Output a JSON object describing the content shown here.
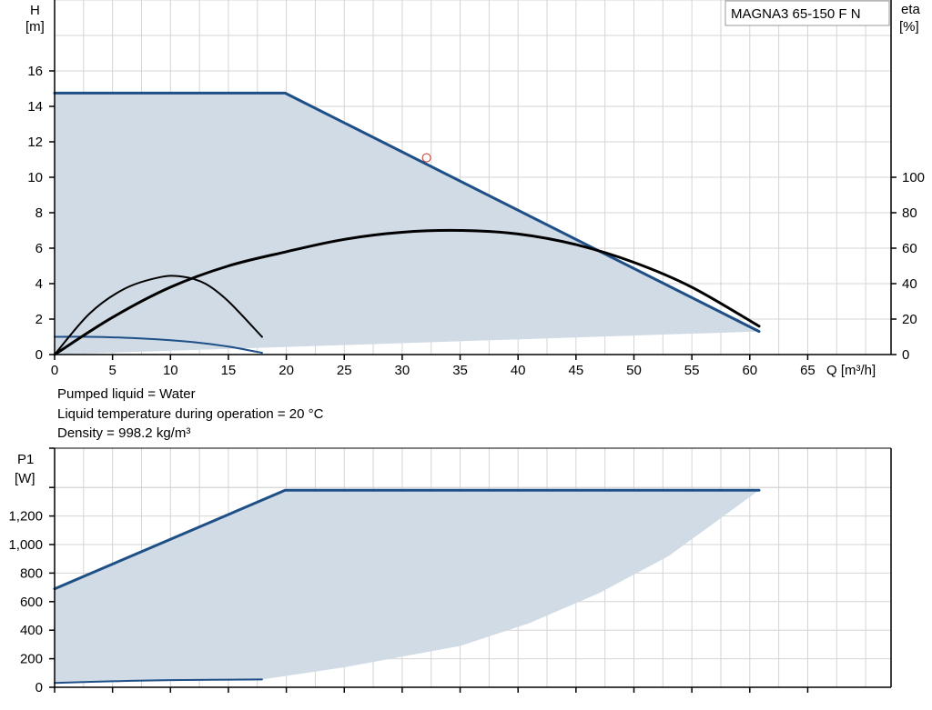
{
  "chart_data": [
    {
      "type": "line",
      "title": "MAGNA3 65-150 F N",
      "xlabel": "Q [m³/h]",
      "ylabel_left": [
        "H",
        "[m]"
      ],
      "ylabel_right": [
        "eta",
        "[%]"
      ],
      "xlim": [
        0,
        72
      ],
      "ylim": [
        0,
        20
      ],
      "y2lim": [
        0,
        200
      ],
      "xticks": [
        0,
        5,
        10,
        15,
        20,
        25,
        30,
        35,
        40,
        45,
        50,
        55,
        60,
        65
      ],
      "yticks": [
        0,
        2,
        4,
        6,
        8,
        10,
        12,
        14,
        16
      ],
      "y2ticks": [
        0,
        20,
        40,
        60,
        80,
        100
      ],
      "grid": true,
      "operating_range": {
        "upper": [
          [
            0,
            14.75
          ],
          [
            19.9,
            14.75
          ],
          [
            60.8,
            1.3
          ]
        ],
        "lower": [
          [
            0,
            0
          ],
          [
            60.8,
            1.3
          ]
        ]
      },
      "series": [
        {
          "axis": "left",
          "color": "#1e4f86",
          "width": 3,
          "x": [
            0,
            19.9,
            60.8
          ],
          "y": [
            14.75,
            14.75,
            1.3
          ]
        },
        {
          "axis": "left",
          "color": "#1e4f86",
          "width": 2,
          "x": [
            0,
            3,
            6,
            9,
            12,
            15,
            17.9
          ],
          "y": [
            1.0,
            1.0,
            0.95,
            0.85,
            0.7,
            0.45,
            0.1
          ]
        },
        {
          "axis": "right",
          "color": "#000000",
          "width": 3,
          "x": [
            0,
            5,
            10,
            15,
            20,
            25,
            30,
            35,
            40,
            45,
            50,
            55,
            60.8
          ],
          "y": [
            0,
            21,
            38,
            50,
            58,
            65,
            69,
            70,
            68,
            62,
            52,
            38,
            16
          ]
        },
        {
          "axis": "right",
          "color": "#000000",
          "width": 2,
          "x": [
            0,
            3,
            6,
            9,
            11,
            13,
            15,
            17.9
          ],
          "y": [
            0,
            23,
            37,
            43.5,
            44,
            40,
            30,
            10
          ]
        }
      ],
      "marker": {
        "x": 32.1,
        "y": 11.1
      }
    },
    {
      "type": "line",
      "xlabel": "",
      "ylabel_left": [
        "P1",
        "[W]"
      ],
      "xlim": [
        0,
        72
      ],
      "ylim": [
        0,
        1500
      ],
      "yticks": [
        0,
        200,
        400,
        600,
        800,
        1000,
        1200,
        1400
      ],
      "ytick_labels": [
        "0",
        "200",
        "400",
        "600",
        "800",
        "1,000",
        "1,200",
        ""
      ],
      "xticks": [
        0,
        5,
        10,
        15,
        20,
        25,
        30,
        35,
        40,
        45,
        50,
        55,
        60,
        65
      ],
      "grid": true,
      "operating_range": {
        "upper": [
          [
            0,
            690
          ],
          [
            19.9,
            1380
          ],
          [
            60.8,
            1380
          ]
        ],
        "lower": [
          [
            0,
            30
          ],
          [
            17.9,
            55
          ],
          [
            25,
            140
          ],
          [
            35,
            290
          ],
          [
            41,
            450
          ],
          [
            47,
            660
          ],
          [
            53,
            920
          ],
          [
            60.8,
            1380
          ]
        ]
      },
      "series": [
        {
          "color": "#1e4f86",
          "width": 3,
          "x": [
            0,
            19.9,
            60.8
          ],
          "y": [
            690,
            1380,
            1380
          ]
        },
        {
          "color": "#1e4f86",
          "width": 2,
          "x": [
            0,
            5,
            10,
            17.9
          ],
          "y": [
            30,
            42,
            50,
            55
          ]
        }
      ]
    }
  ],
  "info": {
    "liquid": "Pumped liquid = Water",
    "temperature": "Liquid temperature during operation = 20 °C",
    "density": "Density = 998.2 kg/m³"
  }
}
